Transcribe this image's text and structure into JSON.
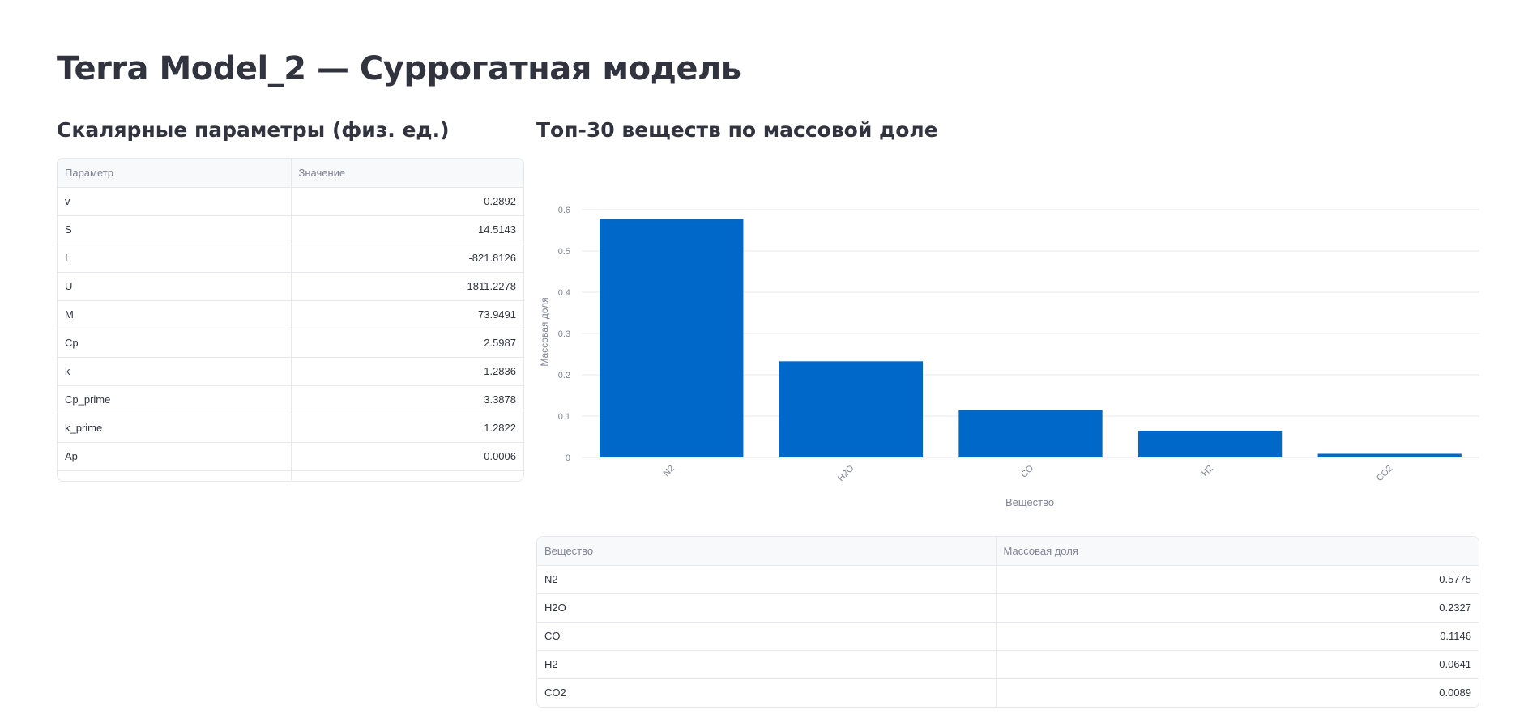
{
  "page": {
    "title": "Terra Model_2 — Суррогатная модель"
  },
  "scalars": {
    "heading": "Скалярные параметры (физ. ед.)",
    "columns": [
      "Параметр",
      "Значение"
    ],
    "rows": [
      {
        "name": "v",
        "value": "0.2892"
      },
      {
        "name": "S",
        "value": "14.5143"
      },
      {
        "name": "I",
        "value": "-821.8126"
      },
      {
        "name": "U",
        "value": "-1811.2278"
      },
      {
        "name": "M",
        "value": "73.9491"
      },
      {
        "name": "Cp",
        "value": "2.5987"
      },
      {
        "name": "k",
        "value": "1.2836"
      },
      {
        "name": "Cp_prime",
        "value": "3.3878"
      },
      {
        "name": "k_prime",
        "value": "1.2822"
      },
      {
        "name": "Ap",
        "value": "0.0006"
      }
    ]
  },
  "top_species": {
    "heading": "Топ-30 веществ по массовой доле",
    "columns": [
      "Вещество",
      "Массовая доля"
    ],
    "rows": [
      {
        "name": "N2",
        "value": "0.5775"
      },
      {
        "name": "H2O",
        "value": "0.2327"
      },
      {
        "name": "CO",
        "value": "0.1146"
      },
      {
        "name": "H2",
        "value": "0.0641"
      },
      {
        "name": "CO2",
        "value": "0.0089"
      }
    ]
  },
  "chart_data": {
    "type": "bar",
    "categories": [
      "N2",
      "H2O",
      "CO",
      "H2",
      "CO2"
    ],
    "values": [
      0.5775,
      0.2327,
      0.1146,
      0.0641,
      0.0089
    ],
    "xlabel": "Вещество",
    "ylabel": "Массовая доля",
    "ylim": [
      0,
      0.6
    ],
    "yticks": [
      0,
      0.1,
      0.2,
      0.3,
      0.4,
      0.5,
      0.6
    ],
    "ytick_labels": [
      "0",
      "0.1",
      "0.2",
      "0.3",
      "0.4",
      "0.5",
      "0.6"
    ],
    "grid": true,
    "bar_color": "#0068c9"
  }
}
